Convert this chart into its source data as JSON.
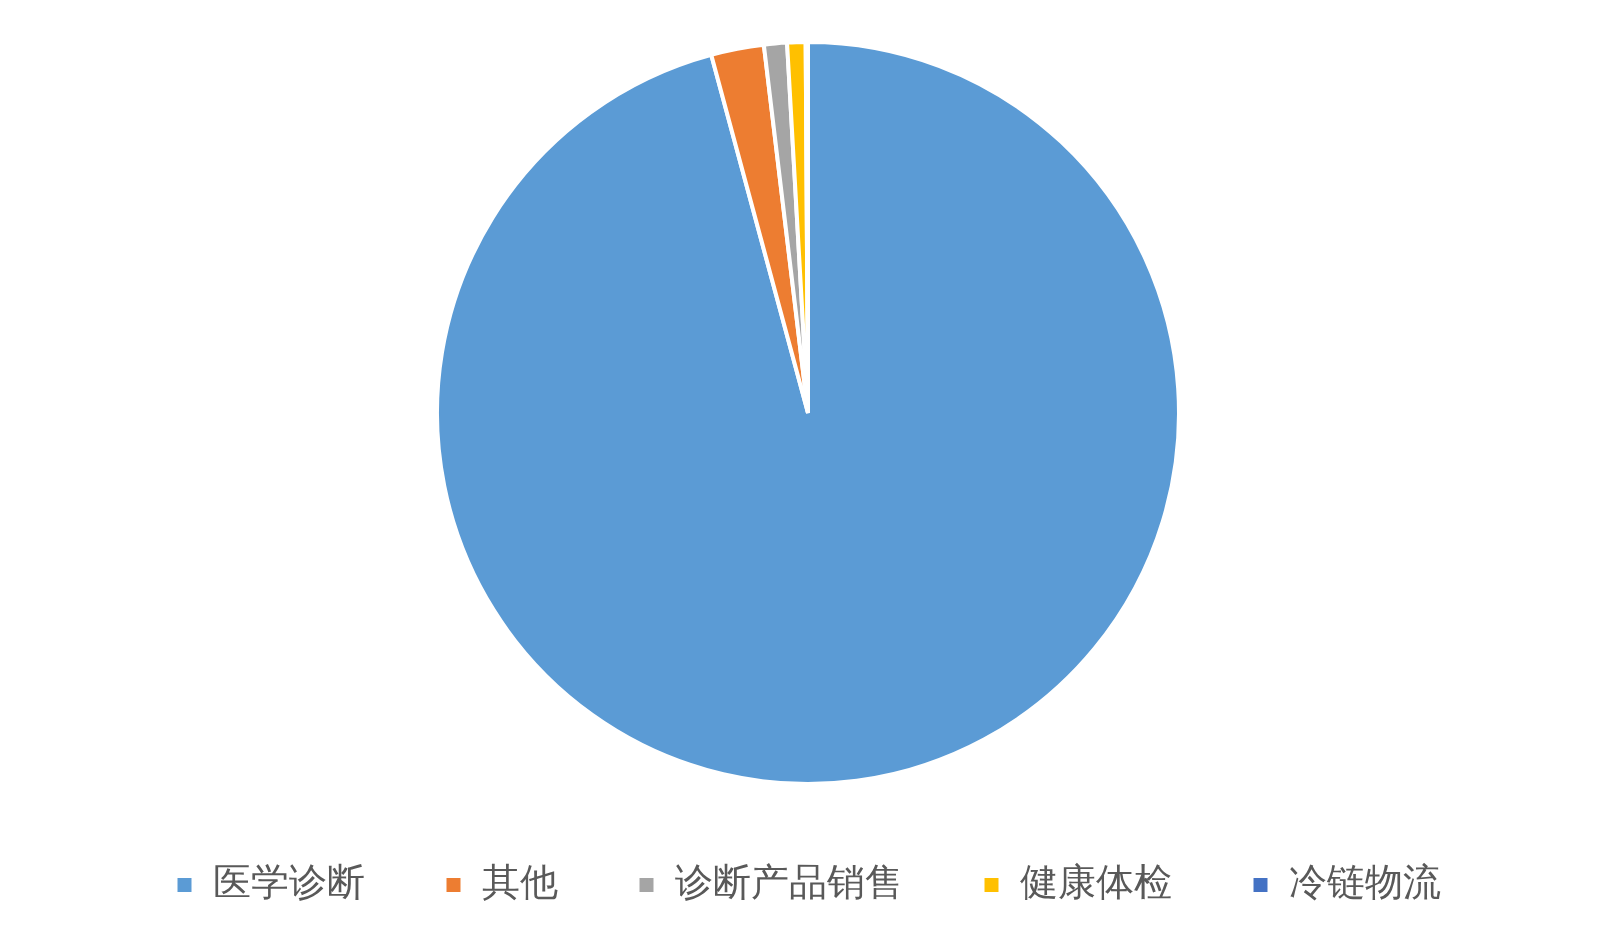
{
  "chart_data": {
    "type": "pie",
    "categories": [
      "医学诊断",
      "其他",
      "诊断产品销售",
      "健康体检",
      "冷链物流"
    ],
    "values": [
      95.8,
      2.3,
      1.0,
      0.8,
      0.1
    ],
    "colors": [
      "#5b9bd5",
      "#ed7d31",
      "#a5a5a5",
      "#ffc000",
      "#4472c4"
    ],
    "legend": "bottom"
  }
}
